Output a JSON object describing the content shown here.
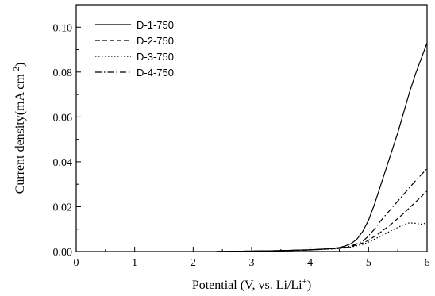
{
  "chart_data": {
    "type": "line",
    "xlabel": "Potential (V, vs. Li/Li",
    "xlabel_sup": "+",
    "xlabel_end": ")",
    "ylabel": "Current density(mA cm",
    "ylabel_sup": "-2",
    "ylabel_end": ")",
    "xlim": [
      0,
      6
    ],
    "ylim": [
      0,
      0.11
    ],
    "x_ticks": [
      0,
      1,
      2,
      3,
      4,
      5,
      6
    ],
    "y_ticks": [
      0.0,
      0.02,
      0.04,
      0.06,
      0.08,
      0.1
    ],
    "y_tick_labels": [
      "0.00",
      "0.02",
      "0.04",
      "0.06",
      "0.08",
      "0.10"
    ],
    "legend_position": "top-left",
    "series": [
      {
        "name": "D-1-750",
        "dash": "solid",
        "points": [
          [
            2.4,
            0.0
          ],
          [
            3.0,
            0.0002
          ],
          [
            3.5,
            0.0004
          ],
          [
            4.0,
            0.0008
          ],
          [
            4.3,
            0.0012
          ],
          [
            4.5,
            0.0018
          ],
          [
            4.6,
            0.0025
          ],
          [
            4.7,
            0.0035
          ],
          [
            4.8,
            0.0055
          ],
          [
            4.9,
            0.009
          ],
          [
            5.0,
            0.014
          ],
          [
            5.1,
            0.021
          ],
          [
            5.2,
            0.029
          ],
          [
            5.3,
            0.037
          ],
          [
            5.4,
            0.045
          ],
          [
            5.5,
            0.053
          ],
          [
            5.6,
            0.062
          ],
          [
            5.7,
            0.071
          ],
          [
            5.8,
            0.079
          ],
          [
            5.9,
            0.086
          ],
          [
            6.0,
            0.093
          ]
        ]
      },
      {
        "name": "D-2-750",
        "dash": "dashed",
        "points": [
          [
            2.4,
            0.0
          ],
          [
            3.0,
            0.0002
          ],
          [
            3.5,
            0.0004
          ],
          [
            4.0,
            0.0007
          ],
          [
            4.5,
            0.0014
          ],
          [
            4.7,
            0.0022
          ],
          [
            4.9,
            0.0038
          ],
          [
            5.0,
            0.005
          ],
          [
            5.2,
            0.0085
          ],
          [
            5.4,
            0.0125
          ],
          [
            5.6,
            0.017
          ],
          [
            5.8,
            0.022
          ],
          [
            6.0,
            0.027
          ]
        ]
      },
      {
        "name": "D-3-750",
        "dash": "dotted",
        "points": [
          [
            2.4,
            0.0
          ],
          [
            3.0,
            0.0002
          ],
          [
            3.5,
            0.0004
          ],
          [
            4.0,
            0.0007
          ],
          [
            4.5,
            0.0013
          ],
          [
            4.7,
            0.002
          ],
          [
            4.9,
            0.0032
          ],
          [
            5.0,
            0.0042
          ],
          [
            5.2,
            0.0068
          ],
          [
            5.4,
            0.0095
          ],
          [
            5.6,
            0.012
          ],
          [
            5.7,
            0.0128
          ],
          [
            5.8,
            0.0126
          ],
          [
            5.9,
            0.0122
          ],
          [
            6.0,
            0.0128
          ]
        ]
      },
      {
        "name": "D-4-750",
        "dash": "dashdot",
        "points": [
          [
            2.4,
            0.0
          ],
          [
            3.0,
            0.0002
          ],
          [
            3.5,
            0.0004
          ],
          [
            4.0,
            0.0007
          ],
          [
            4.5,
            0.0015
          ],
          [
            4.7,
            0.0025
          ],
          [
            4.9,
            0.0045
          ],
          [
            5.0,
            0.007
          ],
          [
            5.1,
            0.01
          ],
          [
            5.2,
            0.0135
          ],
          [
            5.3,
            0.0165
          ],
          [
            5.4,
            0.0195
          ],
          [
            5.5,
            0.0225
          ],
          [
            5.6,
            0.0255
          ],
          [
            5.7,
            0.0285
          ],
          [
            5.8,
            0.0315
          ],
          [
            5.9,
            0.0342
          ],
          [
            6.0,
            0.037
          ]
        ]
      }
    ]
  }
}
